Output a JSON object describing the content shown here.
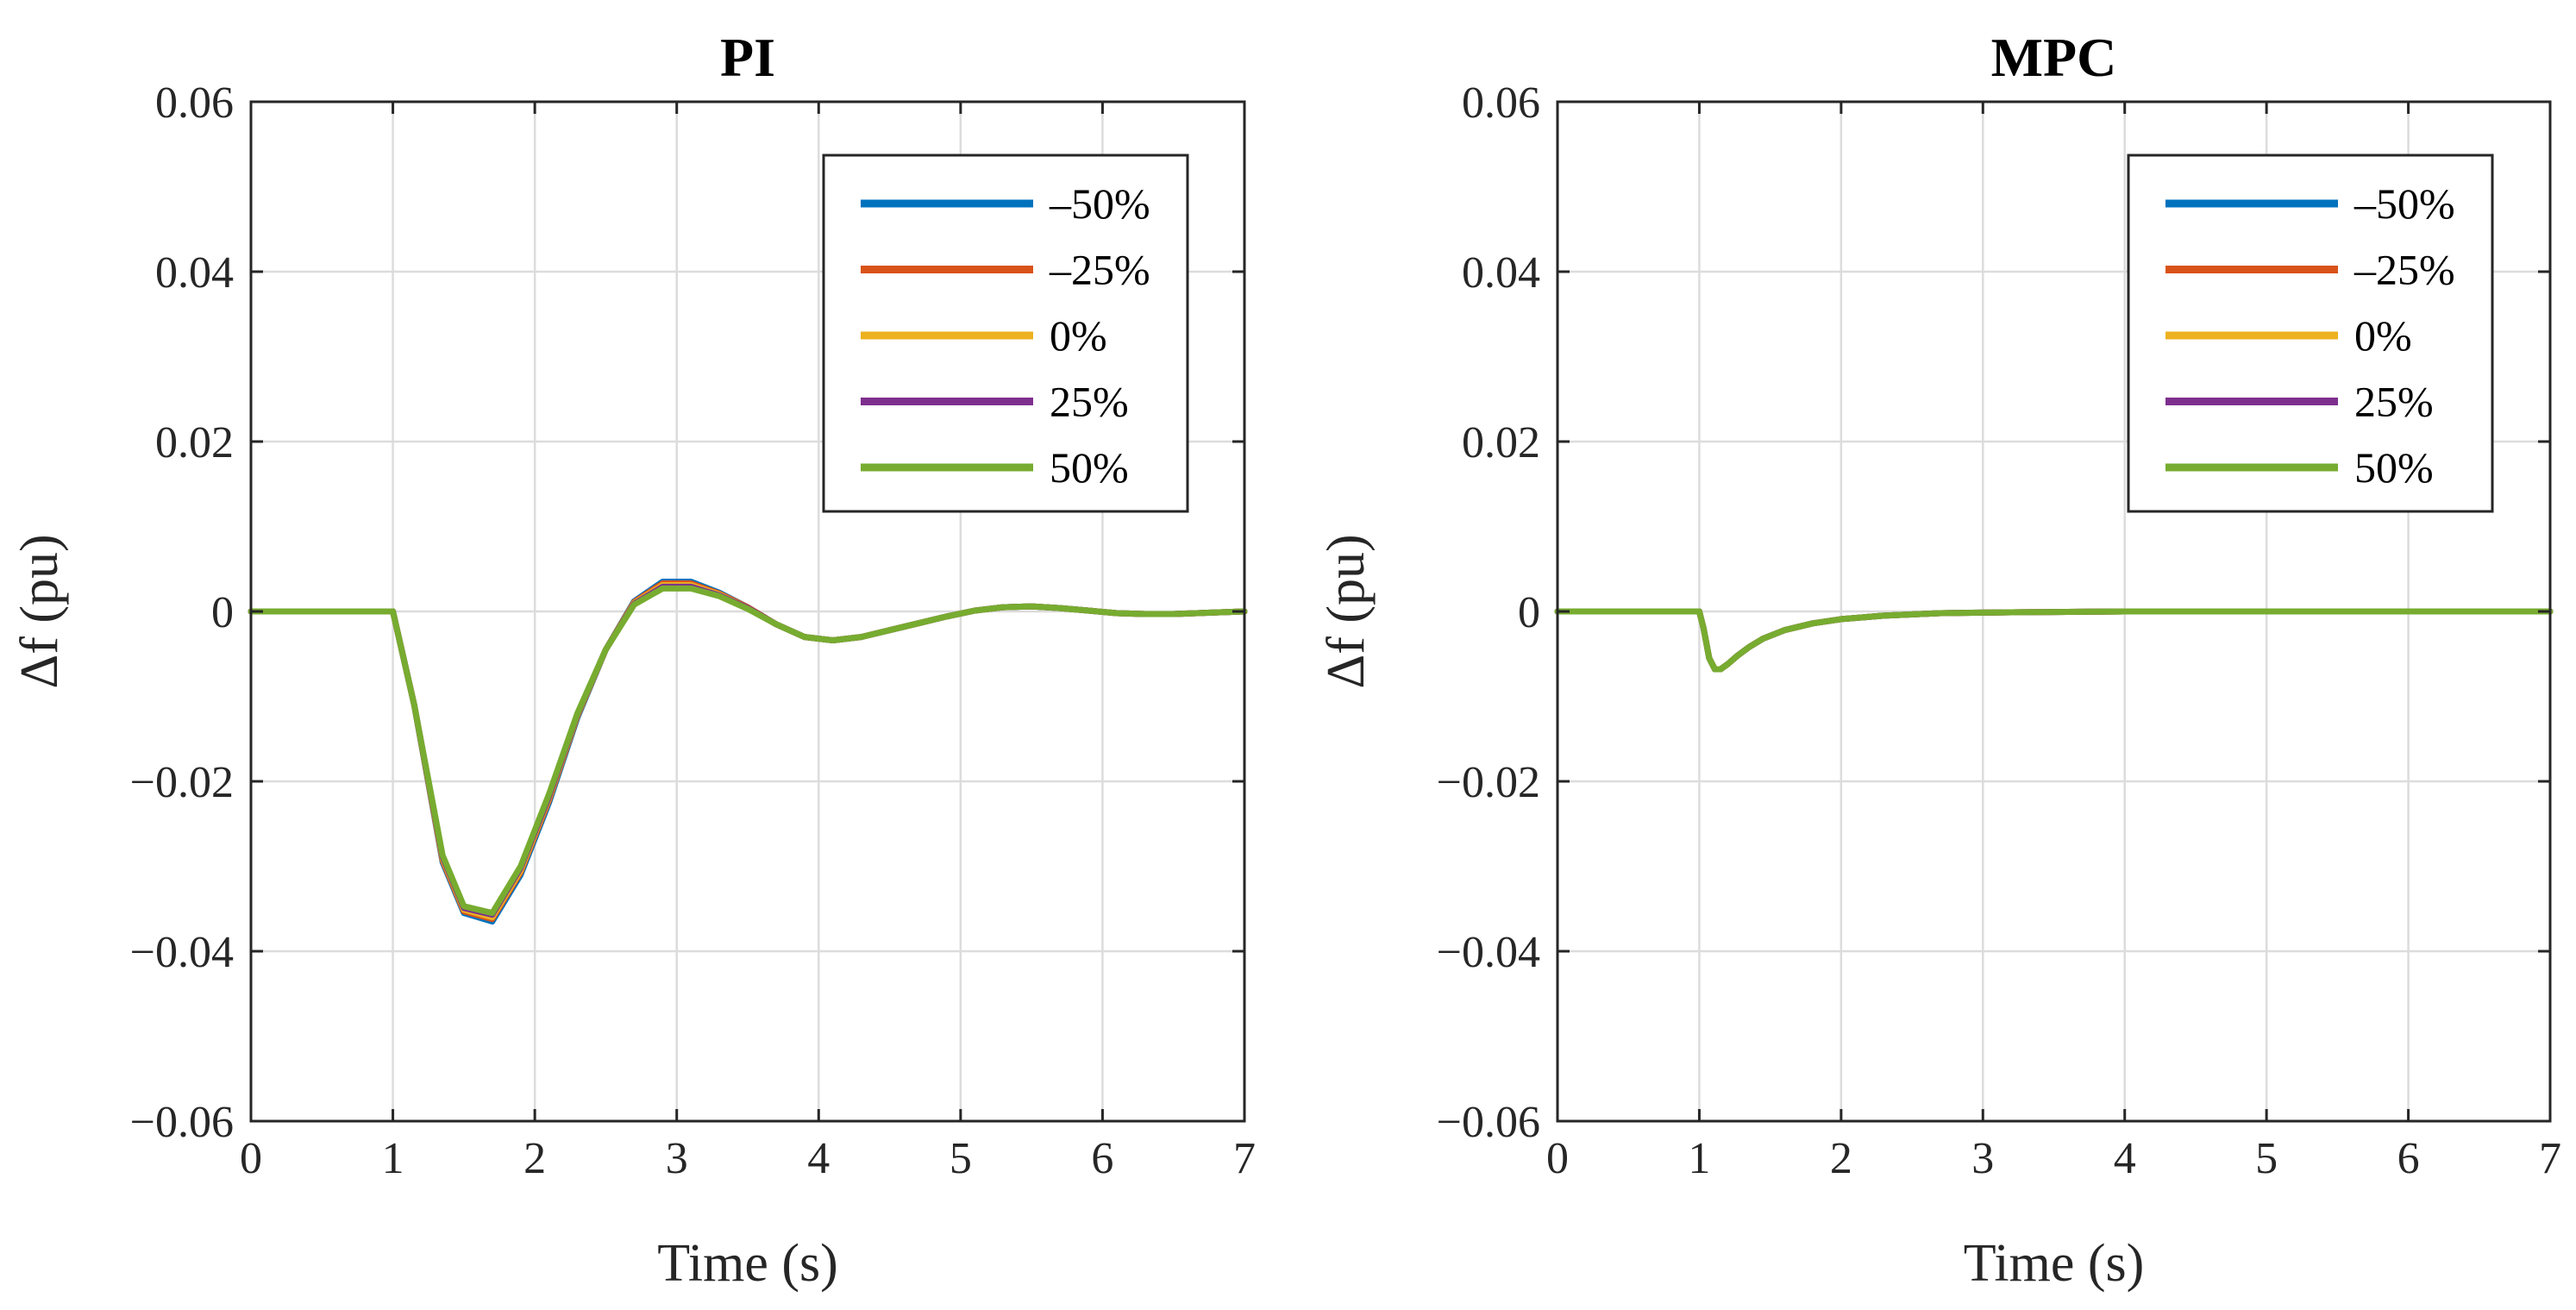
{
  "chart_data": [
    {
      "type": "line",
      "title": "PI",
      "xlabel": "Time (s)",
      "ylabel": "Δf (pu)",
      "xlim": [
        0,
        7
      ],
      "ylim": [
        -0.06,
        0.06
      ],
      "xticks": [
        0,
        1,
        2,
        3,
        4,
        5,
        6,
        7
      ],
      "yticks": [
        -0.06,
        -0.04,
        -0.02,
        0,
        0.02,
        0.04,
        0.06
      ],
      "xtick_labels": [
        "0",
        "1",
        "2",
        "3",
        "4",
        "5",
        "6",
        "7"
      ],
      "ytick_labels": [
        "−0.06",
        "−0.04",
        "−0.02",
        "0",
        "0.02",
        "0.04",
        "0.06"
      ],
      "grid": true,
      "legend": "top-right",
      "series": [
        {
          "name": "–50%",
          "color": "#0072BD",
          "x": [
            0,
            1.0,
            1.15,
            1.35,
            1.5,
            1.7,
            1.9,
            2.1,
            2.3,
            2.5,
            2.7,
            2.9,
            3.1,
            3.3,
            3.5,
            3.7,
            3.9,
            4.1,
            4.3,
            4.5,
            4.7,
            4.9,
            5.1,
            5.3,
            5.5,
            5.7,
            5.9,
            6.1,
            6.3,
            6.5,
            7
          ],
          "y": [
            0,
            0,
            -0.011,
            -0.0295,
            -0.0355,
            -0.0365,
            -0.031,
            -0.0225,
            -0.0125,
            -0.0045,
            0.0012,
            0.0035,
            0.0035,
            0.0022,
            0.0005,
            -0.0015,
            -0.003,
            -0.0034,
            -0.003,
            -0.0022,
            -0.0014,
            -0.0006,
            0.0001,
            0.0005,
            0.0006,
            0.0004,
            0.0001,
            -0.0002,
            -0.0003,
            -0.0003,
            0
          ]
        },
        {
          "name": "–25%",
          "color": "#D95319",
          "x": [
            0,
            1.0,
            1.15,
            1.35,
            1.5,
            1.7,
            1.9,
            2.1,
            2.3,
            2.5,
            2.7,
            2.9,
            3.1,
            3.3,
            3.5,
            3.7,
            3.9,
            4.1,
            4.3,
            4.5,
            4.7,
            4.9,
            5.1,
            5.3,
            5.5,
            5.7,
            5.9,
            6.1,
            6.3,
            6.5,
            7
          ],
          "y": [
            0,
            0,
            -0.011,
            -0.0293,
            -0.0353,
            -0.0362,
            -0.0307,
            -0.0222,
            -0.0123,
            -0.0045,
            0.0011,
            0.0033,
            0.0033,
            0.0021,
            0.0005,
            -0.0015,
            -0.003,
            -0.0034,
            -0.003,
            -0.0022,
            -0.0014,
            -0.0006,
            0.0001,
            0.0005,
            0.0006,
            0.0004,
            0.0001,
            -0.0002,
            -0.0003,
            -0.0003,
            0
          ]
        },
        {
          "name": "0%",
          "color": "#EDB120",
          "x": [
            0,
            1.0,
            1.15,
            1.35,
            1.5,
            1.7,
            1.9,
            2.1,
            2.3,
            2.5,
            2.7,
            2.9,
            3.1,
            3.3,
            3.5,
            3.7,
            3.9,
            4.1,
            4.3,
            4.5,
            4.7,
            4.9,
            5.1,
            5.3,
            5.5,
            5.7,
            5.9,
            6.1,
            6.3,
            6.5,
            7
          ],
          "y": [
            0,
            0,
            -0.011,
            -0.0291,
            -0.0351,
            -0.036,
            -0.0305,
            -0.022,
            -0.0122,
            -0.0045,
            0.001,
            0.0031,
            0.0031,
            0.002,
            0.0004,
            -0.0015,
            -0.003,
            -0.0034,
            -0.003,
            -0.0022,
            -0.0014,
            -0.0006,
            0.0001,
            0.0005,
            0.0006,
            0.0004,
            0.0001,
            -0.0002,
            -0.0003,
            -0.0003,
            0
          ]
        },
        {
          "name": "25%",
          "color": "#7E2F8E",
          "x": [
            0,
            1.0,
            1.15,
            1.35,
            1.5,
            1.7,
            1.9,
            2.1,
            2.3,
            2.5,
            2.7,
            2.9,
            3.1,
            3.3,
            3.5,
            3.7,
            3.9,
            4.1,
            4.3,
            4.5,
            4.7,
            4.9,
            5.1,
            5.3,
            5.5,
            5.7,
            5.9,
            6.1,
            6.3,
            6.5,
            7
          ],
          "y": [
            0,
            0,
            -0.011,
            -0.0289,
            -0.0349,
            -0.0357,
            -0.0302,
            -0.0218,
            -0.0121,
            -0.0045,
            0.0009,
            0.0029,
            0.0029,
            0.0019,
            0.0004,
            -0.0015,
            -0.003,
            -0.0034,
            -0.003,
            -0.0022,
            -0.0014,
            -0.0006,
            0.0001,
            0.0005,
            0.0006,
            0.0004,
            0.0001,
            -0.0002,
            -0.0003,
            -0.0003,
            0
          ]
        },
        {
          "name": "50%",
          "color": "#77AC30",
          "x": [
            0,
            1.0,
            1.15,
            1.35,
            1.5,
            1.7,
            1.9,
            2.1,
            2.3,
            2.5,
            2.7,
            2.9,
            3.1,
            3.3,
            3.5,
            3.7,
            3.9,
            4.1,
            4.3,
            4.5,
            4.7,
            4.9,
            5.1,
            5.3,
            5.5,
            5.7,
            5.9,
            6.1,
            6.3,
            6.5,
            7
          ],
          "y": [
            0,
            0,
            -0.011,
            -0.0287,
            -0.0347,
            -0.0355,
            -0.03,
            -0.0215,
            -0.012,
            -0.0045,
            0.0008,
            0.0027,
            0.0027,
            0.0018,
            0.0003,
            -0.0015,
            -0.003,
            -0.0034,
            -0.003,
            -0.0022,
            -0.0014,
            -0.0006,
            0.0001,
            0.0005,
            0.0006,
            0.0004,
            0.0001,
            -0.0002,
            -0.0003,
            -0.0003,
            0
          ]
        }
      ]
    },
    {
      "type": "line",
      "title": "MPC",
      "xlabel": "Time (s)",
      "ylabel": "Δf (pu)",
      "xlim": [
        0,
        7
      ],
      "ylim": [
        -0.06,
        0.06
      ],
      "xticks": [
        0,
        1,
        2,
        3,
        4,
        5,
        6,
        7
      ],
      "yticks": [
        -0.06,
        -0.04,
        -0.02,
        0,
        0.02,
        0.04,
        0.06
      ],
      "xtick_labels": [
        "0",
        "1",
        "2",
        "3",
        "4",
        "5",
        "6",
        "7"
      ],
      "ytick_labels": [
        "−0.06",
        "−0.04",
        "−0.02",
        "0",
        "0.02",
        "0.04",
        "0.06"
      ],
      "grid": true,
      "legend": "top-right",
      "series": [
        {
          "name": "–50%",
          "color": "#0072BD",
          "x": [
            0,
            1.0,
            1.03,
            1.07,
            1.11,
            1.15,
            1.2,
            1.27,
            1.35,
            1.45,
            1.6,
            1.8,
            2.0,
            2.3,
            2.7,
            3.2,
            4,
            5,
            7
          ],
          "y": [
            0,
            0,
            -0.002,
            -0.0055,
            -0.0068,
            -0.0068,
            -0.0062,
            -0.0052,
            -0.0042,
            -0.0032,
            -0.0022,
            -0.0014,
            -0.0009,
            -0.0005,
            -0.0002,
            -0.0001,
            0,
            0,
            0
          ]
        },
        {
          "name": "–25%",
          "color": "#D95319",
          "x": [
            0,
            1.0,
            1.03,
            1.07,
            1.11,
            1.15,
            1.2,
            1.27,
            1.35,
            1.45,
            1.6,
            1.8,
            2.0,
            2.3,
            2.7,
            3.2,
            4,
            5,
            7
          ],
          "y": [
            0,
            0,
            -0.002,
            -0.0055,
            -0.0068,
            -0.0068,
            -0.0062,
            -0.0052,
            -0.0042,
            -0.0032,
            -0.0022,
            -0.0014,
            -0.0009,
            -0.0005,
            -0.0002,
            -0.0001,
            0,
            0,
            0
          ]
        },
        {
          "name": "0%",
          "color": "#EDB120",
          "x": [
            0,
            1.0,
            1.03,
            1.07,
            1.11,
            1.15,
            1.2,
            1.27,
            1.35,
            1.45,
            1.6,
            1.8,
            2.0,
            2.3,
            2.7,
            3.2,
            4,
            5,
            7
          ],
          "y": [
            0,
            0,
            -0.002,
            -0.0055,
            -0.0068,
            -0.0068,
            -0.0062,
            -0.0052,
            -0.0042,
            -0.0032,
            -0.0022,
            -0.0014,
            -0.0009,
            -0.0005,
            -0.0002,
            -0.0001,
            0,
            0,
            0
          ]
        },
        {
          "name": "25%",
          "color": "#7E2F8E",
          "x": [
            0,
            1.0,
            1.03,
            1.07,
            1.11,
            1.15,
            1.2,
            1.27,
            1.35,
            1.45,
            1.6,
            1.8,
            2.0,
            2.3,
            2.7,
            3.2,
            4,
            5,
            7
          ],
          "y": [
            0,
            0,
            -0.002,
            -0.0055,
            -0.0068,
            -0.0068,
            -0.0062,
            -0.0052,
            -0.0042,
            -0.0032,
            -0.0022,
            -0.0014,
            -0.0009,
            -0.0005,
            -0.0002,
            -0.0001,
            0,
            0,
            0
          ]
        },
        {
          "name": "50%",
          "color": "#77AC30",
          "x": [
            0,
            1.0,
            1.03,
            1.07,
            1.11,
            1.15,
            1.2,
            1.27,
            1.35,
            1.45,
            1.6,
            1.8,
            2.0,
            2.3,
            2.7,
            3.2,
            4,
            5,
            7
          ],
          "y": [
            0,
            0,
            -0.002,
            -0.0055,
            -0.0068,
            -0.0068,
            -0.0062,
            -0.0052,
            -0.0042,
            -0.0032,
            -0.0022,
            -0.0014,
            -0.0009,
            -0.0005,
            -0.0002,
            -0.0001,
            0,
            0,
            0
          ]
        }
      ]
    }
  ]
}
